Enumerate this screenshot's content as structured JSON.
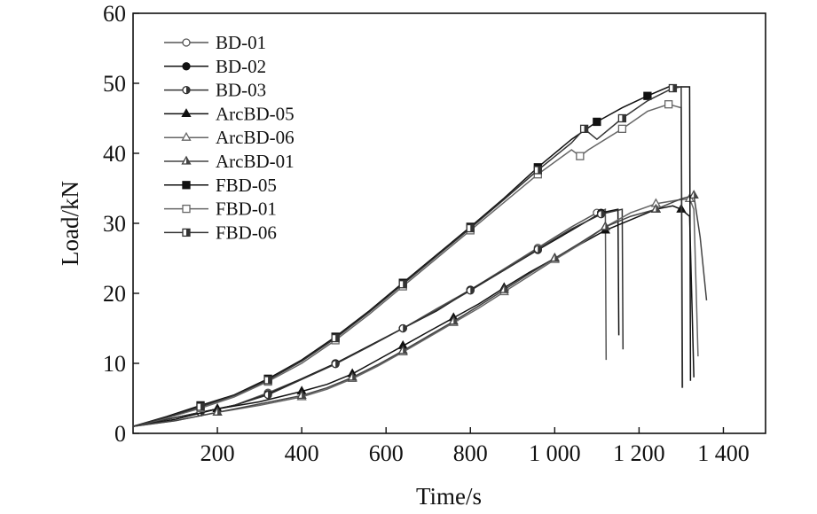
{
  "chart_data": {
    "type": "line",
    "xlabel": "Time/s",
    "ylabel": "Load/kN",
    "xlim": [
      0,
      1500
    ],
    "ylim": [
      0,
      60
    ],
    "xticks": [
      200,
      400,
      600,
      800,
      1000,
      1200,
      1400
    ],
    "xtick_labels": [
      "200",
      "400",
      "600",
      "800",
      "1 000",
      "1 200",
      "1 400"
    ],
    "yticks": [
      0,
      10,
      20,
      30,
      40,
      50,
      60
    ],
    "ytick_labels": [
      "0",
      "10",
      "20",
      "30",
      "40",
      "50",
      "60"
    ],
    "grid": false,
    "legend_position": "top-left",
    "series": [
      {
        "name": "BD-01",
        "marker": "circle-open",
        "color": "#555555",
        "x": [
          0,
          80,
          160,
          240,
          320,
          400,
          480,
          560,
          640,
          720,
          800,
          880,
          960,
          1040,
          1100,
          1120,
          1122
        ],
        "y": [
          1,
          2,
          3,
          4,
          5.8,
          7.8,
          10,
          12.5,
          15,
          17.8,
          20.5,
          23.5,
          26.5,
          29.5,
          31.5,
          32,
          10.5
        ]
      },
      {
        "name": "BD-02",
        "marker": "circle-filled",
        "color": "#111111",
        "x": [
          0,
          80,
          160,
          240,
          320,
          400,
          480,
          560,
          640,
          720,
          800,
          880,
          960,
          1040,
          1110,
          1150,
          1152
        ],
        "y": [
          1,
          2,
          3,
          4,
          5.6,
          7.8,
          10,
          12.5,
          15,
          17.5,
          20.5,
          23.3,
          26.2,
          29,
          31.5,
          32,
          14
        ]
      },
      {
        "name": "BD-03",
        "marker": "circle-half",
        "color": "#333333",
        "x": [
          0,
          80,
          160,
          240,
          320,
          400,
          480,
          560,
          640,
          720,
          800,
          880,
          960,
          1040,
          1110,
          1160,
          1162
        ],
        "y": [
          1,
          2,
          3,
          4,
          5.5,
          7.7,
          9.9,
          12.4,
          15,
          17.6,
          20.4,
          23.3,
          26.3,
          29.2,
          31.3,
          32,
          12
        ]
      },
      {
        "name": "ArcBD-05",
        "marker": "triangle-filled",
        "color": "#111111",
        "x": [
          0,
          100,
          200,
          300,
          400,
          460,
          520,
          580,
          640,
          700,
          760,
          820,
          880,
          940,
          1000,
          1060,
          1120,
          1180,
          1240,
          1280,
          1300,
          1320,
          1330
        ],
        "y": [
          1,
          2,
          3.5,
          4.5,
          6,
          7,
          8.5,
          10.5,
          12.5,
          14.5,
          16.5,
          18.5,
          20.8,
          23,
          25,
          27,
          29,
          30.5,
          32,
          32.5,
          32,
          31,
          8
        ]
      },
      {
        "name": "ArcBD-06",
        "marker": "triangle-open",
        "color": "#666666",
        "x": [
          0,
          100,
          200,
          300,
          400,
          460,
          520,
          580,
          640,
          700,
          760,
          820,
          880,
          940,
          1000,
          1060,
          1120,
          1180,
          1240,
          1290,
          1320,
          1330,
          1340
        ],
        "y": [
          1,
          1.8,
          3,
          4,
          5.2,
          6.3,
          7.8,
          9.6,
          11.6,
          13.7,
          15.8,
          17.9,
          20.2,
          22.5,
          24.8,
          27,
          29.5,
          31.5,
          32.8,
          33.3,
          33.5,
          32,
          11
        ]
      },
      {
        "name": "ArcBD-01",
        "marker": "triangle-half",
        "color": "#444444",
        "x": [
          0,
          100,
          200,
          300,
          400,
          460,
          520,
          580,
          640,
          700,
          760,
          820,
          880,
          940,
          1000,
          1060,
          1120,
          1180,
          1240,
          1300,
          1330,
          1345,
          1360
        ],
        "y": [
          1,
          1.8,
          3,
          4.2,
          5.4,
          6.5,
          8,
          9.8,
          11.8,
          13.9,
          16,
          18.2,
          20.5,
          22.8,
          25,
          27.2,
          29.5,
          31,
          32,
          33.5,
          34,
          28,
          19
        ]
      },
      {
        "name": "FBD-05",
        "marker": "square-filled",
        "color": "#111111",
        "x": [
          0,
          80,
          160,
          240,
          320,
          400,
          480,
          560,
          640,
          720,
          800,
          880,
          960,
          1040,
          1100,
          1160,
          1220,
          1270,
          1320,
          1322
        ],
        "y": [
          1,
          2.4,
          4,
          5.5,
          7.8,
          10.5,
          13.8,
          17.5,
          21.5,
          25.5,
          29.5,
          33.6,
          38,
          42,
          44.5,
          46.5,
          48.2,
          49.5,
          49.5,
          7.5
        ]
      },
      {
        "name": "FBD-01",
        "marker": "square-open",
        "color": "#666666",
        "x": [
          0,
          80,
          160,
          240,
          320,
          400,
          480,
          560,
          640,
          720,
          800,
          880,
          960,
          1040,
          1060,
          1080,
          1160,
          1220,
          1270,
          1300,
          1302
        ],
        "y": [
          1,
          2.2,
          3.6,
          5.2,
          7.4,
          10,
          13.3,
          17,
          21,
          25,
          29,
          33,
          37,
          40.5,
          39.6,
          40.5,
          43.5,
          46,
          47,
          46.5,
          6.5
        ]
      },
      {
        "name": "FBD-06",
        "marker": "square-half",
        "color": "#333333",
        "x": [
          0,
          80,
          160,
          240,
          320,
          400,
          480,
          560,
          640,
          720,
          800,
          880,
          960,
          1040,
          1070,
          1100,
          1160,
          1220,
          1280,
          1300,
          1303
        ],
        "y": [
          1,
          2.3,
          3.8,
          5.4,
          7.6,
          10.3,
          13.6,
          17.3,
          21.3,
          25.3,
          29.3,
          33.4,
          37.6,
          41.5,
          43.5,
          42,
          45,
          47.5,
          49.3,
          49.5,
          6.5
        ]
      }
    ]
  }
}
